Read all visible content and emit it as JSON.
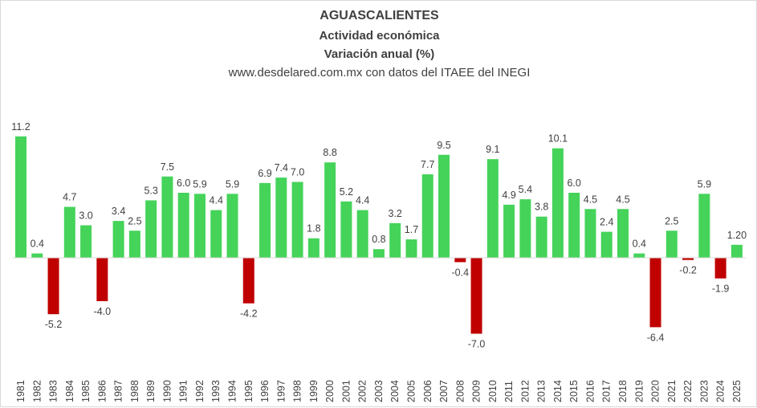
{
  "chart_data": {
    "type": "bar",
    "title": "AGUASCALIENTES",
    "subtitles": [
      "Actividad económica",
      "Variación anual (%)",
      "www.desdelared.com.mx con datos del ITAEE del INEGI"
    ],
    "xlabel": "",
    "ylabel": "",
    "grid": false,
    "legend": "none",
    "colors": {
      "positive": "#45d35a",
      "negative": "#c00000"
    },
    "categories": [
      "1981",
      "1982",
      "1983",
      "1984",
      "1985",
      "1986",
      "1987",
      "1988",
      "1989",
      "1990",
      "1991",
      "1992",
      "1993",
      "1994",
      "1995",
      "1996",
      "1997",
      "1998",
      "1999",
      "2000",
      "2001",
      "2002",
      "2003",
      "2004",
      "2005",
      "2006",
      "2007",
      "2008",
      "2009",
      "2010",
      "2011",
      "2012",
      "2013",
      "2014",
      "2015",
      "2016",
      "2017",
      "2018",
      "2019",
      "2020",
      "2021",
      "2022",
      "2023",
      "2024",
      "2025"
    ],
    "values": [
      11.2,
      0.4,
      -5.2,
      4.7,
      3.0,
      -4.0,
      3.4,
      2.5,
      5.3,
      7.5,
      6.0,
      5.9,
      4.4,
      5.9,
      -4.2,
      6.9,
      7.4,
      7.0,
      1.8,
      8.8,
      5.2,
      4.4,
      0.8,
      3.2,
      1.7,
      7.7,
      9.5,
      -0.4,
      -7.0,
      9.1,
      4.9,
      5.4,
      3.8,
      10.1,
      6.0,
      4.5,
      2.4,
      4.5,
      0.4,
      -6.4,
      2.5,
      -0.2,
      5.9,
      -1.9,
      1.2
    ],
    "data_labels": [
      "11.2",
      "0.4",
      "-5.2",
      "4.7",
      "3.0",
      "-4.0",
      "3.4",
      "2.5",
      "5.3",
      "7.5",
      "6.0",
      "5.9",
      "4.4",
      "5.9",
      "-4.2",
      "6.9",
      "7.4",
      "7.0",
      "1.8",
      "8.8",
      "5.2",
      "4.4",
      "0.8",
      "3.2",
      "1.7",
      "7.7",
      "9.5",
      "-0.4",
      "-7.0",
      "9.1",
      "4.9",
      "5.4",
      "3.8",
      "10.1",
      "6.0",
      "4.5",
      "2.4",
      "4.5",
      "0.4",
      "-6.4",
      "2.5",
      "-0.2",
      "5.9",
      "-1.9",
      "1.20"
    ]
  }
}
